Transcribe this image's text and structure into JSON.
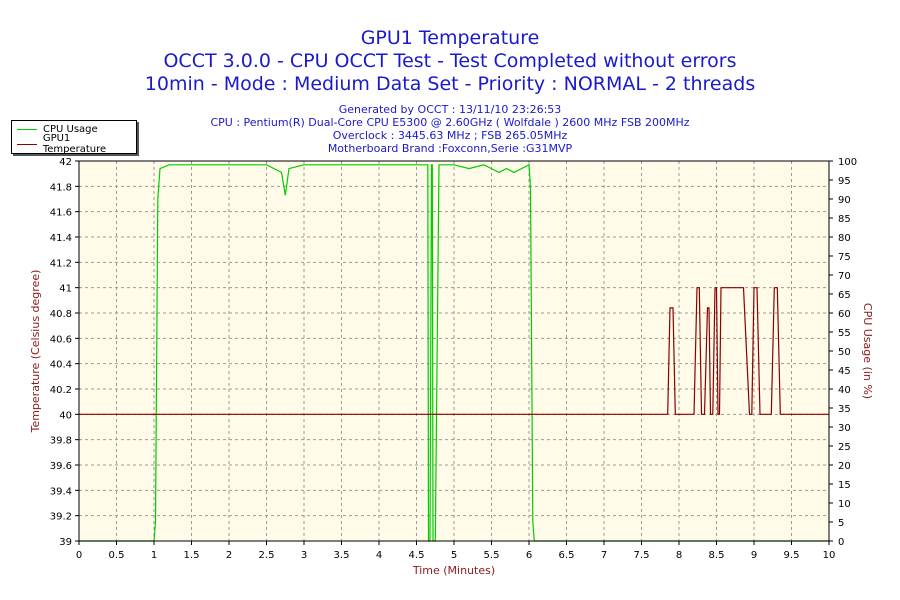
{
  "chart_data": {
    "type": "line",
    "title": "GPU1 Temperature",
    "subtitle1": "OCCT 3.0.0 - CPU OCCT Test - Test Completed without errors",
    "subtitle2": "10min - Mode : Medium Data Set - Priority : NORMAL - 2 threads",
    "info": [
      "Generated by OCCT : 13/11/10 23:26:53",
      "CPU : Pentium(R) Dual-Core CPU E5300 @ 2.60GHz ( Wolfdale ) 2600 MHz FSB 200MHz",
      "Overclock : 3445.63 MHz ; FSB 265.05MHz",
      "Motherboard Brand :Foxconn,Serie :G31MVP"
    ],
    "xlabel": "Time (Minutes)",
    "ylabel": "Temperature (Celsius degree)",
    "y2label": "CPU Usage (in %)",
    "xlim": [
      0,
      10
    ],
    "ylim": [
      39,
      42
    ],
    "y2lim": [
      0,
      100
    ],
    "x_ticks": [
      "0",
      "0.5",
      "1",
      "1.5",
      "2",
      "2.5",
      "3",
      "3.5",
      "4",
      "4.5",
      "5",
      "5.5",
      "6",
      "6.5",
      "7",
      "7.5",
      "8",
      "8.5",
      "9",
      "9.5",
      "10"
    ],
    "y_ticks": [
      "39",
      "39.2",
      "39.4",
      "39.6",
      "39.8",
      "40",
      "40.2",
      "40.4",
      "40.6",
      "40.8",
      "41",
      "41.2",
      "41.4",
      "41.6",
      "41.8",
      "42"
    ],
    "y2_ticks": [
      "0",
      "5",
      "10",
      "15",
      "20",
      "25",
      "30",
      "35",
      "40",
      "45",
      "50",
      "55",
      "60",
      "65",
      "70",
      "75",
      "80",
      "85",
      "90",
      "95",
      "100"
    ],
    "grid": true,
    "legend_position": "top-left",
    "colors": {
      "cpu_usage": "#00cc00",
      "gpu_temp": "#8b0000",
      "plot_bg": "#fffbe8",
      "title": "#1a1acc",
      "axis_label": "#8b1a1a"
    },
    "series": [
      {
        "name": "CPU Usage",
        "axis": "right",
        "x": [
          0,
          1.0,
          1.02,
          1.05,
          1.08,
          1.2,
          1.5,
          2.0,
          2.5,
          2.6,
          2.7,
          2.75,
          2.8,
          3.0,
          3.5,
          4.0,
          4.5,
          4.65,
          4.66,
          4.68,
          4.7,
          4.71,
          4.72,
          4.75,
          4.8,
          5.0,
          5.2,
          5.4,
          5.5,
          5.6,
          5.7,
          5.8,
          5.9,
          6.0,
          6.02,
          6.05,
          6.07,
          7,
          10
        ],
        "y": [
          0,
          0,
          5,
          90,
          98,
          99,
          99,
          99,
          99,
          98,
          97,
          91,
          98,
          99,
          99,
          99,
          99,
          99,
          0,
          0,
          99,
          99,
          0,
          0,
          99,
          99,
          98,
          99,
          98,
          97,
          98,
          97,
          98,
          99,
          93,
          5,
          0,
          0,
          0
        ]
      },
      {
        "name": "GPU1 Temperature",
        "axis": "left",
        "x": [
          0,
          7.85,
          7.88,
          7.92,
          7.95,
          8.0,
          8.2,
          8.24,
          8.27,
          8.3,
          8.34,
          8.38,
          8.4,
          8.42,
          8.45,
          8.48,
          8.5,
          8.52,
          8.54,
          8.56,
          8.8,
          8.86,
          8.94,
          8.97,
          9.0,
          9.04,
          9.08,
          9.12,
          9.2,
          9.23,
          9.27,
          9.31,
          9.35,
          9.4,
          10
        ],
        "y": [
          40,
          40,
          40.84,
          40.84,
          40,
          40,
          40,
          41,
          41,
          40,
          40,
          40.84,
          40.84,
          40,
          40,
          41,
          41,
          40,
          40,
          41,
          41,
          41,
          40,
          40,
          41,
          41,
          40,
          40,
          40,
          40,
          41,
          41,
          40,
          40,
          40
        ]
      }
    ]
  }
}
